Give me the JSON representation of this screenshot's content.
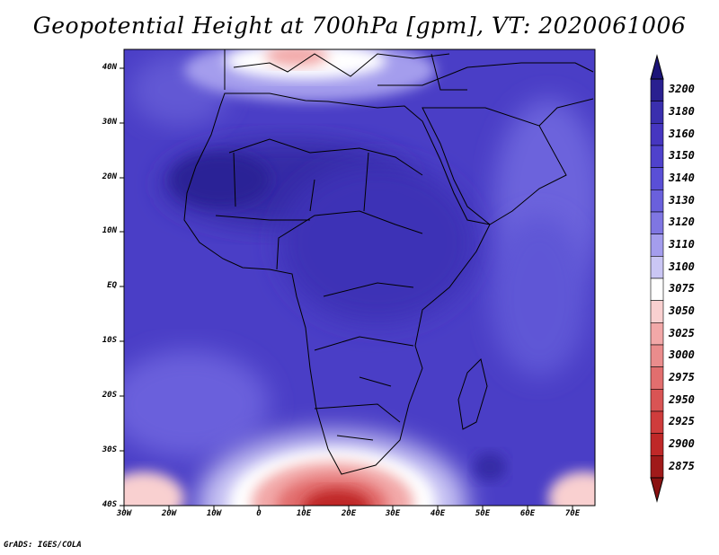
{
  "title": "Geopotential Height at 700hPa [gpm], VT: 2020061006",
  "credit": "GrADS: IGES/COLA",
  "axes": {
    "lat_labels": [
      "40N",
      "30N",
      "20N",
      "10N",
      "EQ",
      "10S",
      "20S",
      "30S",
      "40S"
    ],
    "lon_labels": [
      "30W",
      "20W",
      "10W",
      "0",
      "10E",
      "20E",
      "30E",
      "40E",
      "50E",
      "60E",
      "70E"
    ]
  },
  "colorbar": {
    "levels": [
      "3200",
      "3180",
      "3160",
      "3150",
      "3140",
      "3130",
      "3120",
      "3110",
      "3100",
      "3075",
      "3050",
      "3025",
      "3000",
      "2975",
      "2950",
      "2925",
      "2900",
      "2875"
    ],
    "colors": [
      "#2a2090",
      "#3a2fae",
      "#4636c0",
      "#4f42cc",
      "#5a4fd6",
      "#6a60dc",
      "#7f76e2",
      "#a49ded",
      "#cac6f4",
      "#ffffff",
      "#f9d0d0",
      "#f2a8a8",
      "#ea8c8c",
      "#e26e6e",
      "#d95454",
      "#cf3c3c",
      "#bf2828",
      "#a01a1a"
    ]
  }
}
